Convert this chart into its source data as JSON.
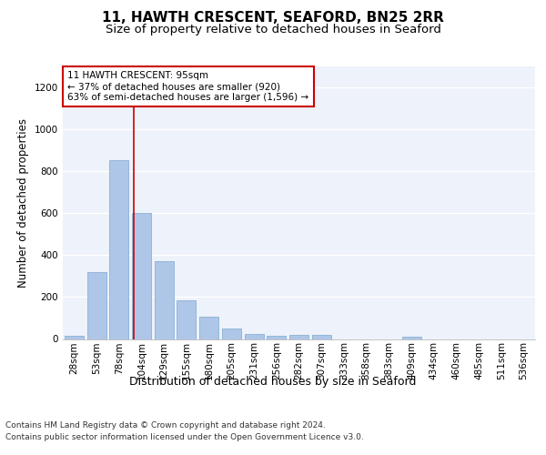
{
  "title": "11, HAWTH CRESCENT, SEAFORD, BN25 2RR",
  "subtitle": "Size of property relative to detached houses in Seaford",
  "xlabel": "Distribution of detached houses by size in Seaford",
  "ylabel": "Number of detached properties",
  "categories": [
    "28sqm",
    "53sqm",
    "78sqm",
    "104sqm",
    "129sqm",
    "155sqm",
    "180sqm",
    "205sqm",
    "231sqm",
    "256sqm",
    "282sqm",
    "307sqm",
    "333sqm",
    "358sqm",
    "383sqm",
    "409sqm",
    "434sqm",
    "460sqm",
    "485sqm",
    "511sqm",
    "536sqm"
  ],
  "values": [
    15,
    320,
    850,
    600,
    370,
    185,
    105,
    48,
    22,
    15,
    18,
    18,
    0,
    0,
    0,
    12,
    0,
    0,
    0,
    0,
    0
  ],
  "bar_color": "#aec6e8",
  "bar_edge_color": "#7aaad0",
  "vline_color": "#cc0000",
  "vline_x": 2.67,
  "annotation_text": "11 HAWTH CRESCENT: 95sqm\n← 37% of detached houses are smaller (920)\n63% of semi-detached houses are larger (1,596) →",
  "annotation_box_color": "#ffffff",
  "annotation_box_edge": "#cc0000",
  "ylim": [
    0,
    1300
  ],
  "yticks": [
    0,
    200,
    400,
    600,
    800,
    1000,
    1200
  ],
  "background_color": "#eef2fa",
  "title_fontsize": 11,
  "subtitle_fontsize": 9.5,
  "ylabel_fontsize": 8.5,
  "xlabel_fontsize": 9,
  "tick_fontsize": 7.5,
  "ann_fontsize": 7.5,
  "footer_fontsize": 6.5,
  "footer1": "Contains HM Land Registry data © Crown copyright and database right 2024.",
  "footer2": "Contains public sector information licensed under the Open Government Licence v3.0."
}
